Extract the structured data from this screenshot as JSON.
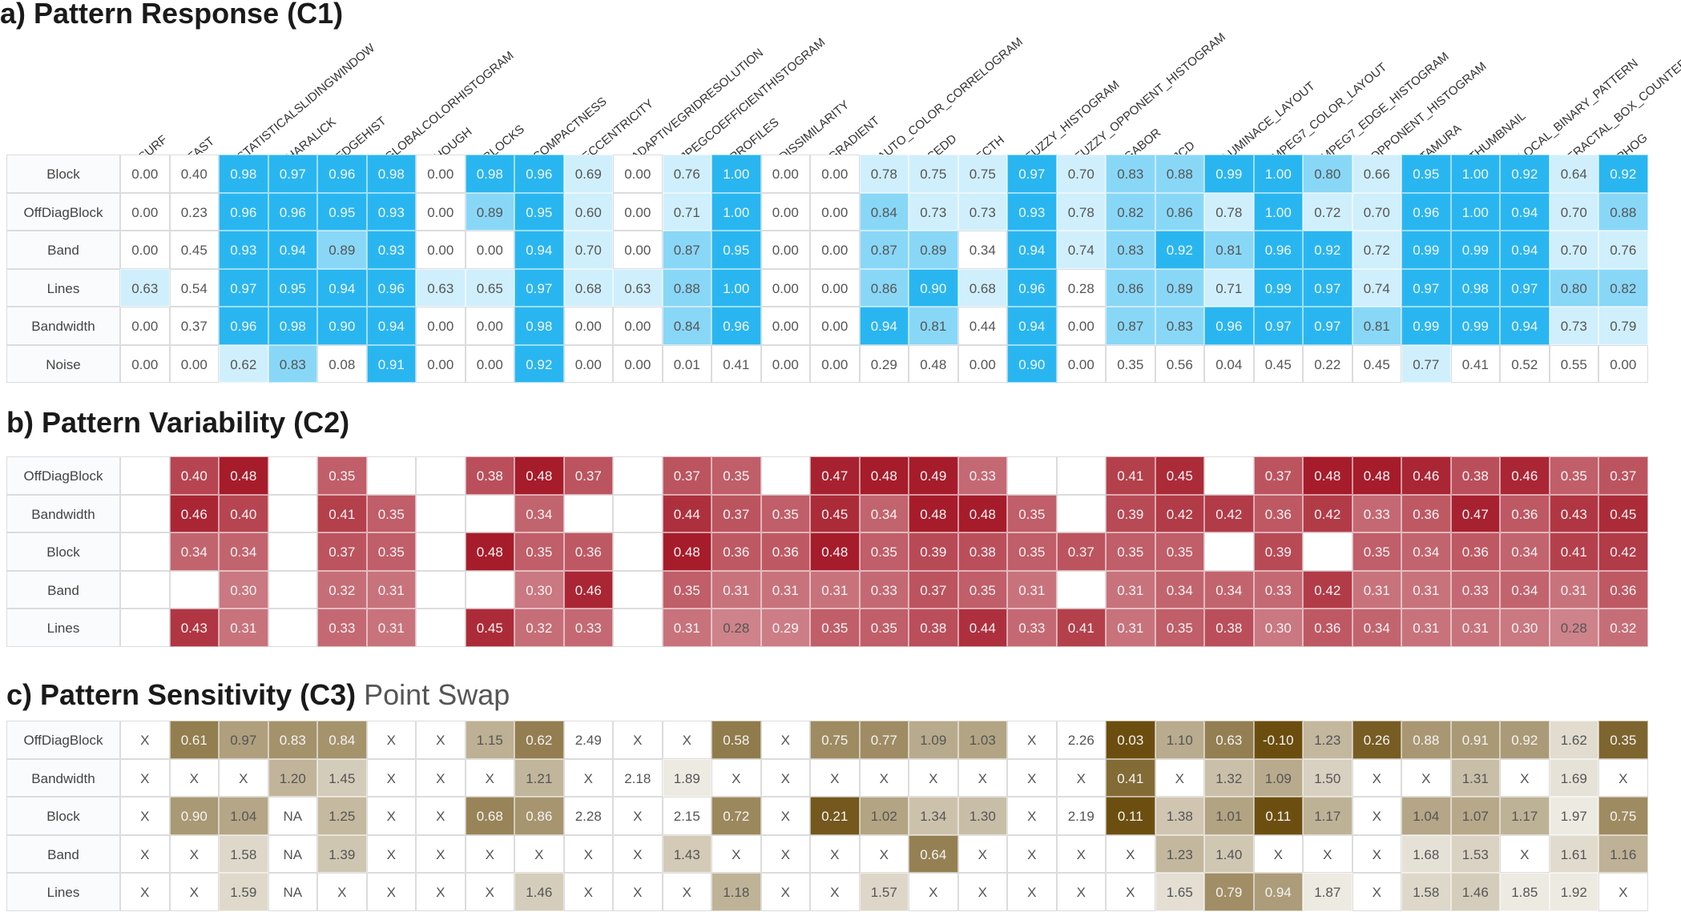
{
  "titles": {
    "a": "a) Pattern Response (C1)",
    "b": "b) Pattern Variability (C2)",
    "c": "c) Pattern Sensitivity (C3)",
    "c_sub": "Point Swap"
  },
  "colors": {
    "c1": "#29b6f0",
    "c2": "#a61c2b",
    "c3": "#6b4e0f"
  },
  "chart_data": [
    {
      "type": "heatmap",
      "title": "a) Pattern Response (C1)",
      "columns": [
        "SURF",
        "FAST",
        "STATISTICALSLIDINGWINDOW",
        "HARALICK",
        "EDGEHIST",
        "GLOBALCOLORHISTOGRAM",
        "HOUGH",
        "BLOCKS",
        "COMPACTNESS",
        "ECCENTRICITY",
        "ADAPTIVEGRIDRESOLUTION",
        "JPEGCOEFFICIENTHISTOGRAM",
        "PROFILES",
        "DISSIMILARITY",
        "GRADIENT",
        "AUTO_COLOR_CORRELOGRAM",
        "CEDD",
        "FCTH",
        "FUZZY_HISTOGRAM",
        "FUZZY_OPPONENT_HISTOGRAM",
        "GABOR",
        "JCD",
        "LUMINACE_LAYOUT",
        "MPEG7_COLOR_LAYOUT",
        "MPEG7_EDGE_HISTOGRAM",
        "OPPONENT_HISTOGRAM",
        "TAMURA",
        "THUMBNAIL",
        "LOCAL_BINARY_PATTERN",
        "FRACTAL_BOX_COUNTER",
        "PHOG"
      ],
      "rows": [
        "Block",
        "OffDiagBlock",
        "Band",
        "Lines",
        "Bandwidth",
        "Noise"
      ],
      "values": [
        [
          "0.00",
          "0.40",
          "0.98",
          "0.97",
          "0.96",
          "0.98",
          "0.00",
          "0.98",
          "0.96",
          "0.69",
          "0.00",
          "0.76",
          "1.00",
          "0.00",
          "0.00",
          "0.78",
          "0.75",
          "0.75",
          "0.97",
          "0.70",
          "0.83",
          "0.88",
          "0.99",
          "1.00",
          "0.80",
          "0.66",
          "0.95",
          "1.00",
          "0.92",
          "0.64",
          "0.92"
        ],
        [
          "0.00",
          "0.23",
          "0.96",
          "0.96",
          "0.95",
          "0.93",
          "0.00",
          "0.89",
          "0.95",
          "0.60",
          "0.00",
          "0.71",
          "1.00",
          "0.00",
          "0.00",
          "0.84",
          "0.73",
          "0.73",
          "0.93",
          "0.78",
          "0.82",
          "0.86",
          "0.78",
          "1.00",
          "0.72",
          "0.70",
          "0.96",
          "1.00",
          "0.94",
          "0.70",
          "0.88"
        ],
        [
          "0.00",
          "0.45",
          "0.93",
          "0.94",
          "0.89",
          "0.93",
          "0.00",
          "0.00",
          "0.94",
          "0.70",
          "0.00",
          "0.87",
          "0.95",
          "0.00",
          "0.00",
          "0.87",
          "0.89",
          "0.34",
          "0.94",
          "0.74",
          "0.83",
          "0.92",
          "0.81",
          "0.96",
          "0.92",
          "0.72",
          "0.99",
          "0.99",
          "0.94",
          "0.70",
          "0.76"
        ],
        [
          "0.63",
          "0.54",
          "0.97",
          "0.95",
          "0.94",
          "0.96",
          "0.63",
          "0.65",
          "0.97",
          "0.68",
          "0.63",
          "0.88",
          "1.00",
          "0.00",
          "0.00",
          "0.86",
          "0.90",
          "0.68",
          "0.96",
          "0.28",
          "0.86",
          "0.89",
          "0.71",
          "0.99",
          "0.97",
          "0.74",
          "0.97",
          "0.98",
          "0.97",
          "0.80",
          "0.82"
        ],
        [
          "0.00",
          "0.37",
          "0.96",
          "0.98",
          "0.90",
          "0.94",
          "0.00",
          "0.00",
          "0.98",
          "0.00",
          "0.00",
          "0.84",
          "0.96",
          "0.00",
          "0.00",
          "0.94",
          "0.81",
          "0.44",
          "0.94",
          "0.00",
          "0.87",
          "0.83",
          "0.96",
          "0.97",
          "0.97",
          "0.81",
          "0.99",
          "0.99",
          "0.94",
          "0.73",
          "0.79"
        ],
        [
          "0.00",
          "0.00",
          "0.62",
          "0.83",
          "0.08",
          "0.91",
          "0.00",
          "0.00",
          "0.92",
          "0.00",
          "0.00",
          "0.01",
          "0.41",
          "0.00",
          "0.00",
          "0.29",
          "0.48",
          "0.00",
          "0.90",
          "0.00",
          "0.35",
          "0.56",
          "0.04",
          "0.45",
          "0.22",
          "0.45",
          "0.77",
          "0.41",
          "0.52",
          "0.55",
          "0.00"
        ]
      ]
    },
    {
      "type": "heatmap",
      "title": "b) Pattern Variability (C2)",
      "rows": [
        "OffDiagBlock",
        "Bandwidth",
        "Block",
        "Band",
        "Lines"
      ],
      "values": [
        [
          "",
          "0.40",
          "0.48",
          "",
          "0.35",
          "",
          "",
          "0.38",
          "0.48",
          "0.37",
          "",
          "0.37",
          "0.35",
          "",
          "0.47",
          "0.48",
          "0.49",
          "0.33",
          "",
          "",
          "0.41",
          "0.45",
          "",
          "0.37",
          "0.48",
          "0.48",
          "0.46",
          "0.38",
          "0.46",
          "0.35",
          "0.37"
        ],
        [
          "",
          "0.46",
          "0.40",
          "",
          "0.41",
          "0.35",
          "",
          "",
          "0.34",
          "",
          "",
          "0.44",
          "0.37",
          "0.35",
          "0.45",
          "0.34",
          "0.48",
          "0.48",
          "0.35",
          "",
          "0.39",
          "0.42",
          "0.42",
          "0.36",
          "0.42",
          "0.33",
          "0.36",
          "0.47",
          "0.36",
          "0.43",
          "0.45"
        ],
        [
          "",
          "0.34",
          "0.34",
          "",
          "0.37",
          "0.35",
          "",
          "0.48",
          "0.35",
          "0.36",
          "",
          "0.48",
          "0.36",
          "0.36",
          "0.48",
          "0.35",
          "0.39",
          "0.38",
          "0.35",
          "0.37",
          "0.35",
          "0.35",
          "",
          "0.39",
          "",
          "0.35",
          "0.34",
          "0.36",
          "0.34",
          "0.41",
          "0.42"
        ],
        [
          "",
          "",
          "0.30",
          "",
          "0.32",
          "0.31",
          "",
          "",
          "0.30",
          "0.46",
          "",
          "0.35",
          "0.31",
          "0.31",
          "0.31",
          "0.33",
          "0.37",
          "0.35",
          "0.31",
          "",
          "0.31",
          "0.34",
          "0.34",
          "0.33",
          "0.42",
          "0.31",
          "0.31",
          "0.33",
          "0.34",
          "0.31",
          "0.36"
        ],
        [
          "",
          "0.43",
          "0.31",
          "",
          "0.33",
          "0.31",
          "",
          "0.45",
          "0.32",
          "0.33",
          "",
          "0.31",
          "0.28",
          "0.29",
          "0.35",
          "0.35",
          "0.38",
          "0.44",
          "0.33",
          "0.41",
          "0.31",
          "0.35",
          "0.38",
          "0.30",
          "0.36",
          "0.34",
          "0.31",
          "0.31",
          "0.30",
          "0.28",
          "0.32"
        ]
      ]
    },
    {
      "type": "heatmap",
      "title": "c) Pattern Sensitivity (C3)",
      "subtitle": "Point Swap",
      "rows": [
        "OffDiagBlock",
        "Bandwidth",
        "Block",
        "Band",
        "Lines"
      ],
      "values": [
        [
          "X",
          "0.61",
          "0.97",
          "0.83",
          "0.84",
          "X",
          "X",
          "1.15",
          "0.62",
          "2.49",
          "X",
          "X",
          "0.58",
          "X",
          "0.75",
          "0.77",
          "1.09",
          "1.03",
          "X",
          "2.26",
          "0.03",
          "1.10",
          "0.63",
          "-0.10",
          "1.23",
          "0.26",
          "0.88",
          "0.91",
          "0.92",
          "1.62",
          "0.35"
        ],
        [
          "X",
          "X",
          "X",
          "1.20",
          "1.45",
          "X",
          "X",
          "X",
          "1.21",
          "X",
          "2.18",
          "1.89",
          "X",
          "X",
          "X",
          "X",
          "X",
          "X",
          "X",
          "X",
          "0.41",
          "X",
          "1.32",
          "1.09",
          "1.50",
          "X",
          "X",
          "1.31",
          "X",
          "1.69",
          "X"
        ],
        [
          "X",
          "0.90",
          "1.04",
          "NA",
          "1.25",
          "X",
          "X",
          "0.68",
          "0.86",
          "2.28",
          "X",
          "2.15",
          "0.72",
          "X",
          "0.21",
          "1.02",
          "1.34",
          "1.30",
          "X",
          "2.19",
          "0.11",
          "1.38",
          "1.01",
          "0.11",
          "1.17",
          "X",
          "1.04",
          "1.07",
          "1.17",
          "1.97",
          "0.75"
        ],
        [
          "X",
          "X",
          "1.58",
          "NA",
          "1.39",
          "X",
          "X",
          "X",
          "X",
          "X",
          "X",
          "1.43",
          "X",
          "X",
          "X",
          "X",
          "0.64",
          "X",
          "X",
          "X",
          "X",
          "1.23",
          "1.40",
          "X",
          "X",
          "X",
          "1.68",
          "1.53",
          "X",
          "1.61",
          "1.16"
        ],
        [
          "X",
          "X",
          "1.59",
          "NA",
          "X",
          "X",
          "X",
          "X",
          "1.46",
          "X",
          "X",
          "X",
          "1.18",
          "X",
          "X",
          "1.57",
          "X",
          "X",
          "X",
          "X",
          "X",
          "1.65",
          "0.79",
          "0.94",
          "1.87",
          "X",
          "1.58",
          "1.46",
          "1.85",
          "1.92",
          "X"
        ]
      ]
    }
  ]
}
